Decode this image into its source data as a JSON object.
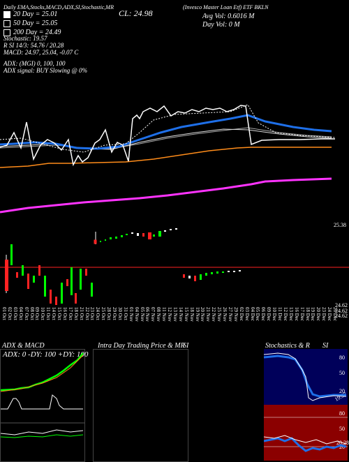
{
  "header": {
    "top_line": "Daily EMA,Stocks,MACD,ADX,SI,Stochastic,MR",
    "symbol_line": "(Invesco Master Loan Etf) ETF BKLN",
    "cl_label": "CL: 24.98",
    "avg_vol": "Avg Vol: 0.6016 M",
    "day_vol": "Day Vol: 0 M",
    "ema_lines": [
      {
        "label": "20 Day = 25.01"
      },
      {
        "label": "50 Day = 25.05"
      },
      {
        "label": "200 Day = 24.49"
      }
    ],
    "stats": [
      "Stochastic: 19.57",
      "R SI 14/3: 54.76 / 20.28",
      "MACD: 24.97, 25.04, -0.07 C",
      "ADX:  (MGI) 0, 100, 100",
      "ADX signal:   BUY Slowing @ 0%"
    ],
    "price_label": "25.38",
    "low_labels": [
      "24.62",
      "24.62",
      "24.62"
    ]
  },
  "dates": [
    "01 Oct",
    "02 Oct",
    "03 Oct",
    "04 Oct",
    "07 Oct",
    "08 Oct",
    "09 Oct",
    "10 Oct",
    "11 Oct",
    "14 Oct",
    "15 Oct",
    "16 Oct",
    "17 Oct",
    "18 Oct",
    "21 Oct",
    "22 Oct",
    "23 Oct",
    "24 Oct",
    "25 Oct",
    "28 Oct",
    "29 Oct",
    "30 Oct",
    "31 Oct",
    "01 Nov",
    "04 Nov",
    "05 Nov",
    "06 Nov",
    "07 Nov",
    "08 Nov",
    "11 Nov",
    "12 Nov",
    "13 Nov",
    "14 Nov",
    "15 Nov",
    "18 Nov",
    "19 Nov",
    "20 Nov",
    "21 Nov",
    "22 Nov",
    "25 Nov",
    "26 Nov",
    "27 Nov",
    "29 Nov",
    "02 Dec",
    "03 Dec",
    "04 Dec",
    "05 Dec",
    "06 Dec",
    "09 Dec",
    "10 Dec",
    "11 Dec",
    "12 Dec",
    "13 Dec",
    "16 Dec",
    "17 Dec",
    "18 Dec",
    "19 Dec",
    "20 Dec",
    "23 Dec",
    "24 Dec",
    "26 Dec"
  ],
  "panels": {
    "adx_macd": {
      "title": "ADX & MACD",
      "values": "ADX: 0  -DY: 100  +DY: 100"
    },
    "intra": {
      "title": "Intra Day Trading Price & MR",
      "si_label": "SI"
    },
    "stoch": {
      "title": "Stochastics & R",
      "si_label": "SI"
    },
    "stoch_ticks": [
      "80",
      "50",
      "20"
    ],
    "stoch_value": "19.57",
    "rsi_ticks": [
      "80",
      "50",
      "20"
    ],
    "rsi_value": "20.28"
  },
  "colors": {
    "background": "#000000",
    "ema20": "#ffffff",
    "ema50": "#1e6fe8",
    "ema200": "#ff8c1a",
    "mr": "#ff33ff",
    "stoch_panel": "#00005a",
    "rsi_panel": "#8b0000",
    "adx_green": "#00ff00"
  }
}
